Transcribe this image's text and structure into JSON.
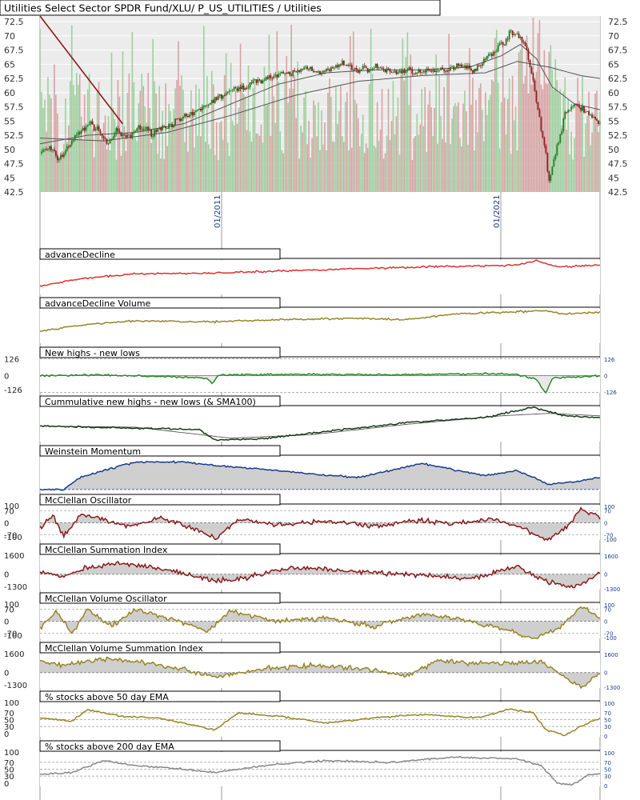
{
  "header": {
    "title": "Utilities Select Sector SPDR Fund/XLU/ P_US_UTILITIES / Utilities"
  },
  "colors": {
    "bg": "#ffffff",
    "plot_bg": "#ececec",
    "grid": "#ffffff",
    "vline": "#9a9a9a",
    "candle_up": "#1d7a1d",
    "candle_down": "#8b1a1a",
    "vol_up": "#9ecf9e",
    "vol_down": "#d6a3a3",
    "trend_line": "#8b1a1a",
    "ma": "#555555",
    "red": "#e03030",
    "olive": "#9a8426",
    "green": "#2a8a2a",
    "dark": "#1a3a1a",
    "blue": "#1a3a8a",
    "maroon": "#8b1a1a",
    "gray": "#888888",
    "axis_text": "#1a3a8a"
  },
  "chart_data": [
    {
      "type": "candlestick",
      "title": "Utilities Select Sector SPDR Fund/XLU/ P_US_UTILITIES / Utilities",
      "y_ticks": [
        "72.5",
        "70",
        "67.5",
        "65",
        "62.5",
        "60",
        "57.5",
        "55",
        "52.5",
        "50",
        "47.5",
        "45",
        "42.5"
      ],
      "ylim": [
        42.5,
        73.5
      ],
      "x_date_labels": [
        "01/2011",
        "01/2021"
      ],
      "price_anchors": [
        [
          0,
          49.5
        ],
        [
          6,
          50.2
        ],
        [
          12,
          48.2
        ],
        [
          20,
          51.5
        ],
        [
          30,
          54.5
        ],
        [
          36,
          53.8
        ],
        [
          42,
          51
        ],
        [
          48,
          53
        ],
        [
          56,
          52
        ],
        [
          62,
          54
        ],
        [
          70,
          53
        ],
        [
          82,
          54.5
        ],
        [
          95,
          56
        ],
        [
          108,
          58.5
        ],
        [
          118,
          60
        ],
        [
          128,
          61
        ],
        [
          140,
          62.5
        ],
        [
          150,
          63
        ],
        [
          160,
          63.5
        ],
        [
          168,
          64.5
        ],
        [
          178,
          63.5
        ],
        [
          190,
          65
        ],
        [
          200,
          64
        ],
        [
          212,
          64.5
        ],
        [
          222,
          63.5
        ],
        [
          232,
          64
        ],
        [
          242,
          63.5
        ],
        [
          254,
          64
        ],
        [
          264,
          65
        ],
        [
          274,
          64
        ],
        [
          282,
          66.5
        ],
        [
          290,
          68.5
        ],
        [
          296,
          70.5
        ],
        [
          302,
          70
        ],
        [
          306,
          67.5
        ],
        [
          310,
          62
        ],
        [
          314,
          55
        ],
        [
          318,
          49.5
        ],
        [
          320,
          44
        ],
        [
          322,
          47
        ],
        [
          326,
          51.5
        ],
        [
          330,
          56
        ],
        [
          336,
          58
        ],
        [
          342,
          57
        ],
        [
          348,
          55.5
        ],
        [
          352,
          54.5
        ]
      ],
      "sma_fast": [
        [
          0,
          51
        ],
        [
          30,
          52.5
        ],
        [
          60,
          53
        ],
        [
          90,
          54.5
        ],
        [
          120,
          58
        ],
        [
          150,
          61.5
        ],
        [
          180,
          63.5
        ],
        [
          210,
          64
        ],
        [
          240,
          64
        ],
        [
          270,
          64.5
        ],
        [
          290,
          66.5
        ],
        [
          302,
          68.5
        ],
        [
          312,
          66
        ],
        [
          322,
          61
        ],
        [
          336,
          58
        ],
        [
          352,
          57
        ]
      ],
      "sma_slow": [
        [
          0,
          52
        ],
        [
          40,
          51.5
        ],
        [
          80,
          53
        ],
        [
          120,
          56
        ],
        [
          160,
          59.5
        ],
        [
          200,
          62
        ],
        [
          240,
          63
        ],
        [
          280,
          63.5
        ],
        [
          300,
          65.5
        ],
        [
          320,
          64.5
        ],
        [
          340,
          63
        ],
        [
          352,
          62.5
        ]
      ],
      "trend_line": [
        [
          0,
          73.5
        ],
        [
          52,
          54.5
        ]
      ]
    },
    {
      "type": "line",
      "title": "advanceDecline",
      "color_key": "red",
      "points": [
        [
          0,
          0.25
        ],
        [
          25,
          0.45
        ],
        [
          60,
          0.6
        ],
        [
          110,
          0.62
        ],
        [
          150,
          0.68
        ],
        [
          200,
          0.75
        ],
        [
          240,
          0.8
        ],
        [
          270,
          0.82
        ],
        [
          300,
          0.85
        ],
        [
          312,
          0.98
        ],
        [
          325,
          0.8
        ],
        [
          352,
          0.85
        ]
      ]
    },
    {
      "type": "line",
      "title": "advanceDecline Volume",
      "color_key": "olive",
      "points": [
        [
          0,
          0.35
        ],
        [
          30,
          0.55
        ],
        [
          60,
          0.65
        ],
        [
          110,
          0.62
        ],
        [
          160,
          0.7
        ],
        [
          200,
          0.72
        ],
        [
          230,
          0.68
        ],
        [
          260,
          0.85
        ],
        [
          295,
          0.9
        ],
        [
          315,
          0.95
        ],
        [
          330,
          0.85
        ],
        [
          352,
          0.9
        ]
      ]
    },
    {
      "type": "line",
      "title": "New highs - new lows",
      "color_key": "green",
      "y_ticks": [
        "126",
        "0",
        "-126"
      ],
      "right_ticks": [
        "126",
        "0",
        "-126"
      ],
      "zero": true,
      "points": [
        [
          0,
          0
        ],
        [
          40,
          5
        ],
        [
          80,
          -8
        ],
        [
          105,
          -20
        ],
        [
          108,
          -60
        ],
        [
          112,
          5
        ],
        [
          160,
          10
        ],
        [
          220,
          5
        ],
        [
          280,
          15
        ],
        [
          300,
          10
        ],
        [
          312,
          -30
        ],
        [
          318,
          -130
        ],
        [
          322,
          -20
        ],
        [
          352,
          0
        ]
      ]
    },
    {
      "type": "line",
      "title": "Cummulative new highs - new lows (& SMA100)",
      "color_key": "dark",
      "points": [
        [
          0,
          0.45
        ],
        [
          50,
          0.4
        ],
        [
          100,
          0.35
        ],
        [
          110,
          0.05
        ],
        [
          140,
          0.08
        ],
        [
          180,
          0.3
        ],
        [
          230,
          0.55
        ],
        [
          280,
          0.7
        ],
        [
          310,
          1
        ],
        [
          330,
          0.75
        ],
        [
          352,
          0.7
        ]
      ],
      "sma": [
        [
          0,
          0.45
        ],
        [
          60,
          0.42
        ],
        [
          120,
          0.1
        ],
        [
          170,
          0.2
        ],
        [
          230,
          0.5
        ],
        [
          290,
          0.75
        ],
        [
          320,
          0.82
        ],
        [
          352,
          0.75
        ]
      ]
    },
    {
      "type": "area",
      "title": "Weinstein Momentum",
      "color_key": "blue",
      "baseline": 0.05,
      "points": [
        [
          0,
          0.05
        ],
        [
          15,
          0.05
        ],
        [
          25,
          0.4
        ],
        [
          40,
          0.6
        ],
        [
          60,
          0.85
        ],
        [
          90,
          0.85
        ],
        [
          110,
          0.75
        ],
        [
          150,
          0.6
        ],
        [
          170,
          0.5
        ],
        [
          200,
          0.4
        ],
        [
          240,
          0.8
        ],
        [
          280,
          0.45
        ],
        [
          300,
          0.6
        ],
        [
          320,
          0.2
        ],
        [
          340,
          0.3
        ],
        [
          352,
          0.4
        ]
      ]
    },
    {
      "type": "area",
      "title": "McClellan Oscillator",
      "color_key": "maroon",
      "zero": true,
      "y_ticks": [
        "100",
        "70",
        "0",
        "-70",
        "-100"
      ],
      "right_ticks": [
        "100",
        "70",
        "0",
        "-70",
        "-100"
      ],
      "ylim": [
        -100,
        100
      ],
      "points": [
        [
          0,
          -30
        ],
        [
          8,
          40
        ],
        [
          15,
          -80
        ],
        [
          25,
          50
        ],
        [
          40,
          20
        ],
        [
          55,
          -20
        ],
        [
          75,
          30
        ],
        [
          90,
          -10
        ],
        [
          110,
          -90
        ],
        [
          125,
          20
        ],
        [
          150,
          -10
        ],
        [
          180,
          10
        ],
        [
          210,
          -20
        ],
        [
          240,
          15
        ],
        [
          260,
          -5
        ],
        [
          285,
          20
        ],
        [
          300,
          -20
        ],
        [
          318,
          -100
        ],
        [
          330,
          -40
        ],
        [
          340,
          80
        ],
        [
          352,
          30
        ]
      ]
    },
    {
      "type": "area",
      "title": "McClellan Summation Index",
      "color_key": "maroon",
      "zero": true,
      "y_ticks": [
        "1600",
        "0",
        "-1300"
      ],
      "right_ticks": [
        "1600",
        "0",
        "-1300"
      ],
      "ylim": [
        -1300,
        1600
      ],
      "points": [
        [
          0,
          200
        ],
        [
          15,
          -200
        ],
        [
          30,
          600
        ],
        [
          50,
          900
        ],
        [
          80,
          400
        ],
        [
          110,
          -600
        ],
        [
          125,
          -400
        ],
        [
          160,
          600
        ],
        [
          200,
          200
        ],
        [
          230,
          0
        ],
        [
          270,
          -400
        ],
        [
          300,
          600
        ],
        [
          320,
          -700
        ],
        [
          335,
          -1100
        ],
        [
          352,
          0
        ]
      ]
    },
    {
      "type": "area",
      "title": "McClellan Volume Oscillator",
      "color_key": "olive",
      "zero": true,
      "y_ticks": [
        "100",
        "70",
        "0",
        "-70",
        "-100"
      ],
      "right_ticks": [
        "100",
        "70",
        "0",
        "-70",
        "-100"
      ],
      "ylim": [
        -100,
        100
      ],
      "points": [
        [
          0,
          -40
        ],
        [
          10,
          60
        ],
        [
          20,
          -70
        ],
        [
          30,
          70
        ],
        [
          45,
          -30
        ],
        [
          60,
          70
        ],
        [
          80,
          20
        ],
        [
          105,
          -60
        ],
        [
          120,
          60
        ],
        [
          150,
          0
        ],
        [
          180,
          20
        ],
        [
          210,
          -30
        ],
        [
          240,
          40
        ],
        [
          265,
          10
        ],
        [
          290,
          -40
        ],
        [
          310,
          -100
        ],
        [
          325,
          -50
        ],
        [
          340,
          90
        ],
        [
          352,
          20
        ]
      ]
    },
    {
      "type": "area",
      "title": "McClellan Volume Summation Index",
      "color_key": "olive",
      "zero": true,
      "y_ticks": [
        "1600",
        "0",
        "-1300"
      ],
      "right_ticks": [
        "1600",
        "0",
        "-1300"
      ],
      "ylim": [
        -1300,
        1600
      ],
      "points": [
        [
          0,
          1000
        ],
        [
          15,
          600
        ],
        [
          40,
          1200
        ],
        [
          70,
          800
        ],
        [
          110,
          -300
        ],
        [
          140,
          300
        ],
        [
          170,
          600
        ],
        [
          210,
          200
        ],
        [
          230,
          -300
        ],
        [
          250,
          1000
        ],
        [
          270,
          800
        ],
        [
          300,
          800
        ],
        [
          315,
          900
        ],
        [
          330,
          -400
        ],
        [
          340,
          -1300
        ],
        [
          352,
          0
        ]
      ]
    },
    {
      "type": "line",
      "title": "% stocks above 50 day EMA",
      "color_key": "olive",
      "y_ticks": [
        "100",
        "70",
        "50",
        "30",
        "0"
      ],
      "right_ticks": [
        "100",
        "70",
        "50",
        "30",
        "0"
      ],
      "ylim": [
        0,
        100
      ],
      "points": [
        [
          0,
          55
        ],
        [
          20,
          45
        ],
        [
          30,
          80
        ],
        [
          50,
          60
        ],
        [
          75,
          55
        ],
        [
          110,
          20
        ],
        [
          125,
          70
        ],
        [
          150,
          60
        ],
        [
          180,
          40
        ],
        [
          210,
          55
        ],
        [
          240,
          65
        ],
        [
          275,
          55
        ],
        [
          295,
          80
        ],
        [
          310,
          70
        ],
        [
          318,
          20
        ],
        [
          330,
          5
        ],
        [
          340,
          30
        ],
        [
          352,
          55
        ]
      ]
    },
    {
      "type": "line",
      "title": "% stocks above 200 day EMA",
      "color_key": "gray",
      "y_ticks": [
        "100",
        "70",
        "50",
        "30",
        "0"
      ],
      "right_ticks": [
        "100",
        "70",
        "50",
        "30",
        "0"
      ],
      "ylim": [
        0,
        100
      ],
      "points": [
        [
          0,
          35
        ],
        [
          20,
          40
        ],
        [
          40,
          75
        ],
        [
          60,
          60
        ],
        [
          80,
          55
        ],
        [
          110,
          40
        ],
        [
          125,
          50
        ],
        [
          150,
          65
        ],
        [
          180,
          75
        ],
        [
          220,
          70
        ],
        [
          260,
          85
        ],
        [
          300,
          80
        ],
        [
          315,
          60
        ],
        [
          325,
          10
        ],
        [
          335,
          5
        ],
        [
          345,
          35
        ],
        [
          352,
          35
        ]
      ]
    }
  ]
}
